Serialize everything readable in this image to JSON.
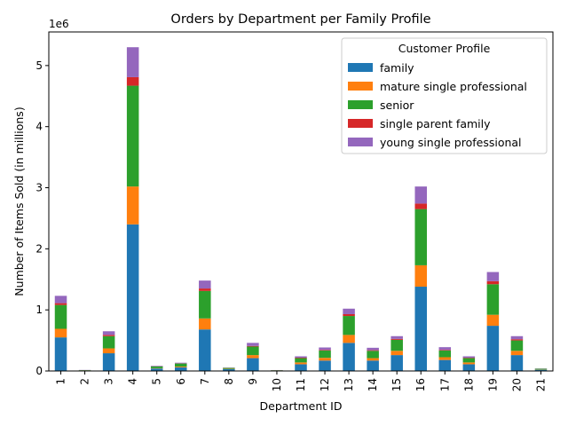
{
  "chart_data": {
    "type": "bar",
    "stacked": true,
    "title": "Orders by Department per Family Profile",
    "xlabel": "Department ID",
    "ylabel": "Number of Items Sold (in millions)",
    "y_offset_label": "1e6",
    "ylim": [
      0,
      5550000
    ],
    "yticks": [
      0,
      1000000,
      2000000,
      3000000,
      4000000,
      5000000
    ],
    "ytick_labels": [
      "0",
      "1",
      "2",
      "3",
      "4",
      "5"
    ],
    "grid": false,
    "legend": {
      "title": "Customer Profile",
      "placement": "top-right"
    },
    "categories": [
      "1",
      "2",
      "3",
      "4",
      "5",
      "6",
      "7",
      "8",
      "9",
      "10",
      "11",
      "12",
      "13",
      "14",
      "15",
      "16",
      "17",
      "18",
      "19",
      "20",
      "21"
    ],
    "series": [
      {
        "name": "family",
        "color": "#1f77b4",
        "values": [
          550000,
          10000,
          290000,
          2400000,
          40000,
          60000,
          680000,
          30000,
          210000,
          8000,
          110000,
          170000,
          460000,
          170000,
          260000,
          1380000,
          180000,
          110000,
          740000,
          260000,
          20000
        ]
      },
      {
        "name": "mature single professional",
        "color": "#ff7f0e",
        "values": [
          140000,
          2000,
          80000,
          620000,
          5000,
          12000,
          180000,
          5000,
          50000,
          2000,
          30000,
          45000,
          130000,
          40000,
          70000,
          350000,
          45000,
          30000,
          180000,
          70000,
          4000
        ]
      },
      {
        "name": "senior",
        "color": "#2ca02c",
        "values": [
          390000,
          3000,
          200000,
          1650000,
          30000,
          50000,
          450000,
          15000,
          140000,
          3000,
          70000,
          120000,
          310000,
          120000,
          180000,
          920000,
          110000,
          70000,
          500000,
          170000,
          12000
        ]
      },
      {
        "name": "single parent family",
        "color": "#d62728",
        "values": [
          30000,
          0,
          20000,
          140000,
          2000,
          3000,
          40000,
          1000,
          10000,
          0,
          8000,
          10000,
          30000,
          10000,
          15000,
          90000,
          10000,
          7000,
          50000,
          20000,
          1000
        ]
      },
      {
        "name": "young single professional",
        "color": "#9467bd",
        "values": [
          120000,
          2000,
          60000,
          490000,
          8000,
          10000,
          130000,
          4000,
          50000,
          2000,
          22000,
          40000,
          90000,
          40000,
          45000,
          280000,
          45000,
          23000,
          150000,
          50000,
          3000
        ]
      }
    ]
  }
}
